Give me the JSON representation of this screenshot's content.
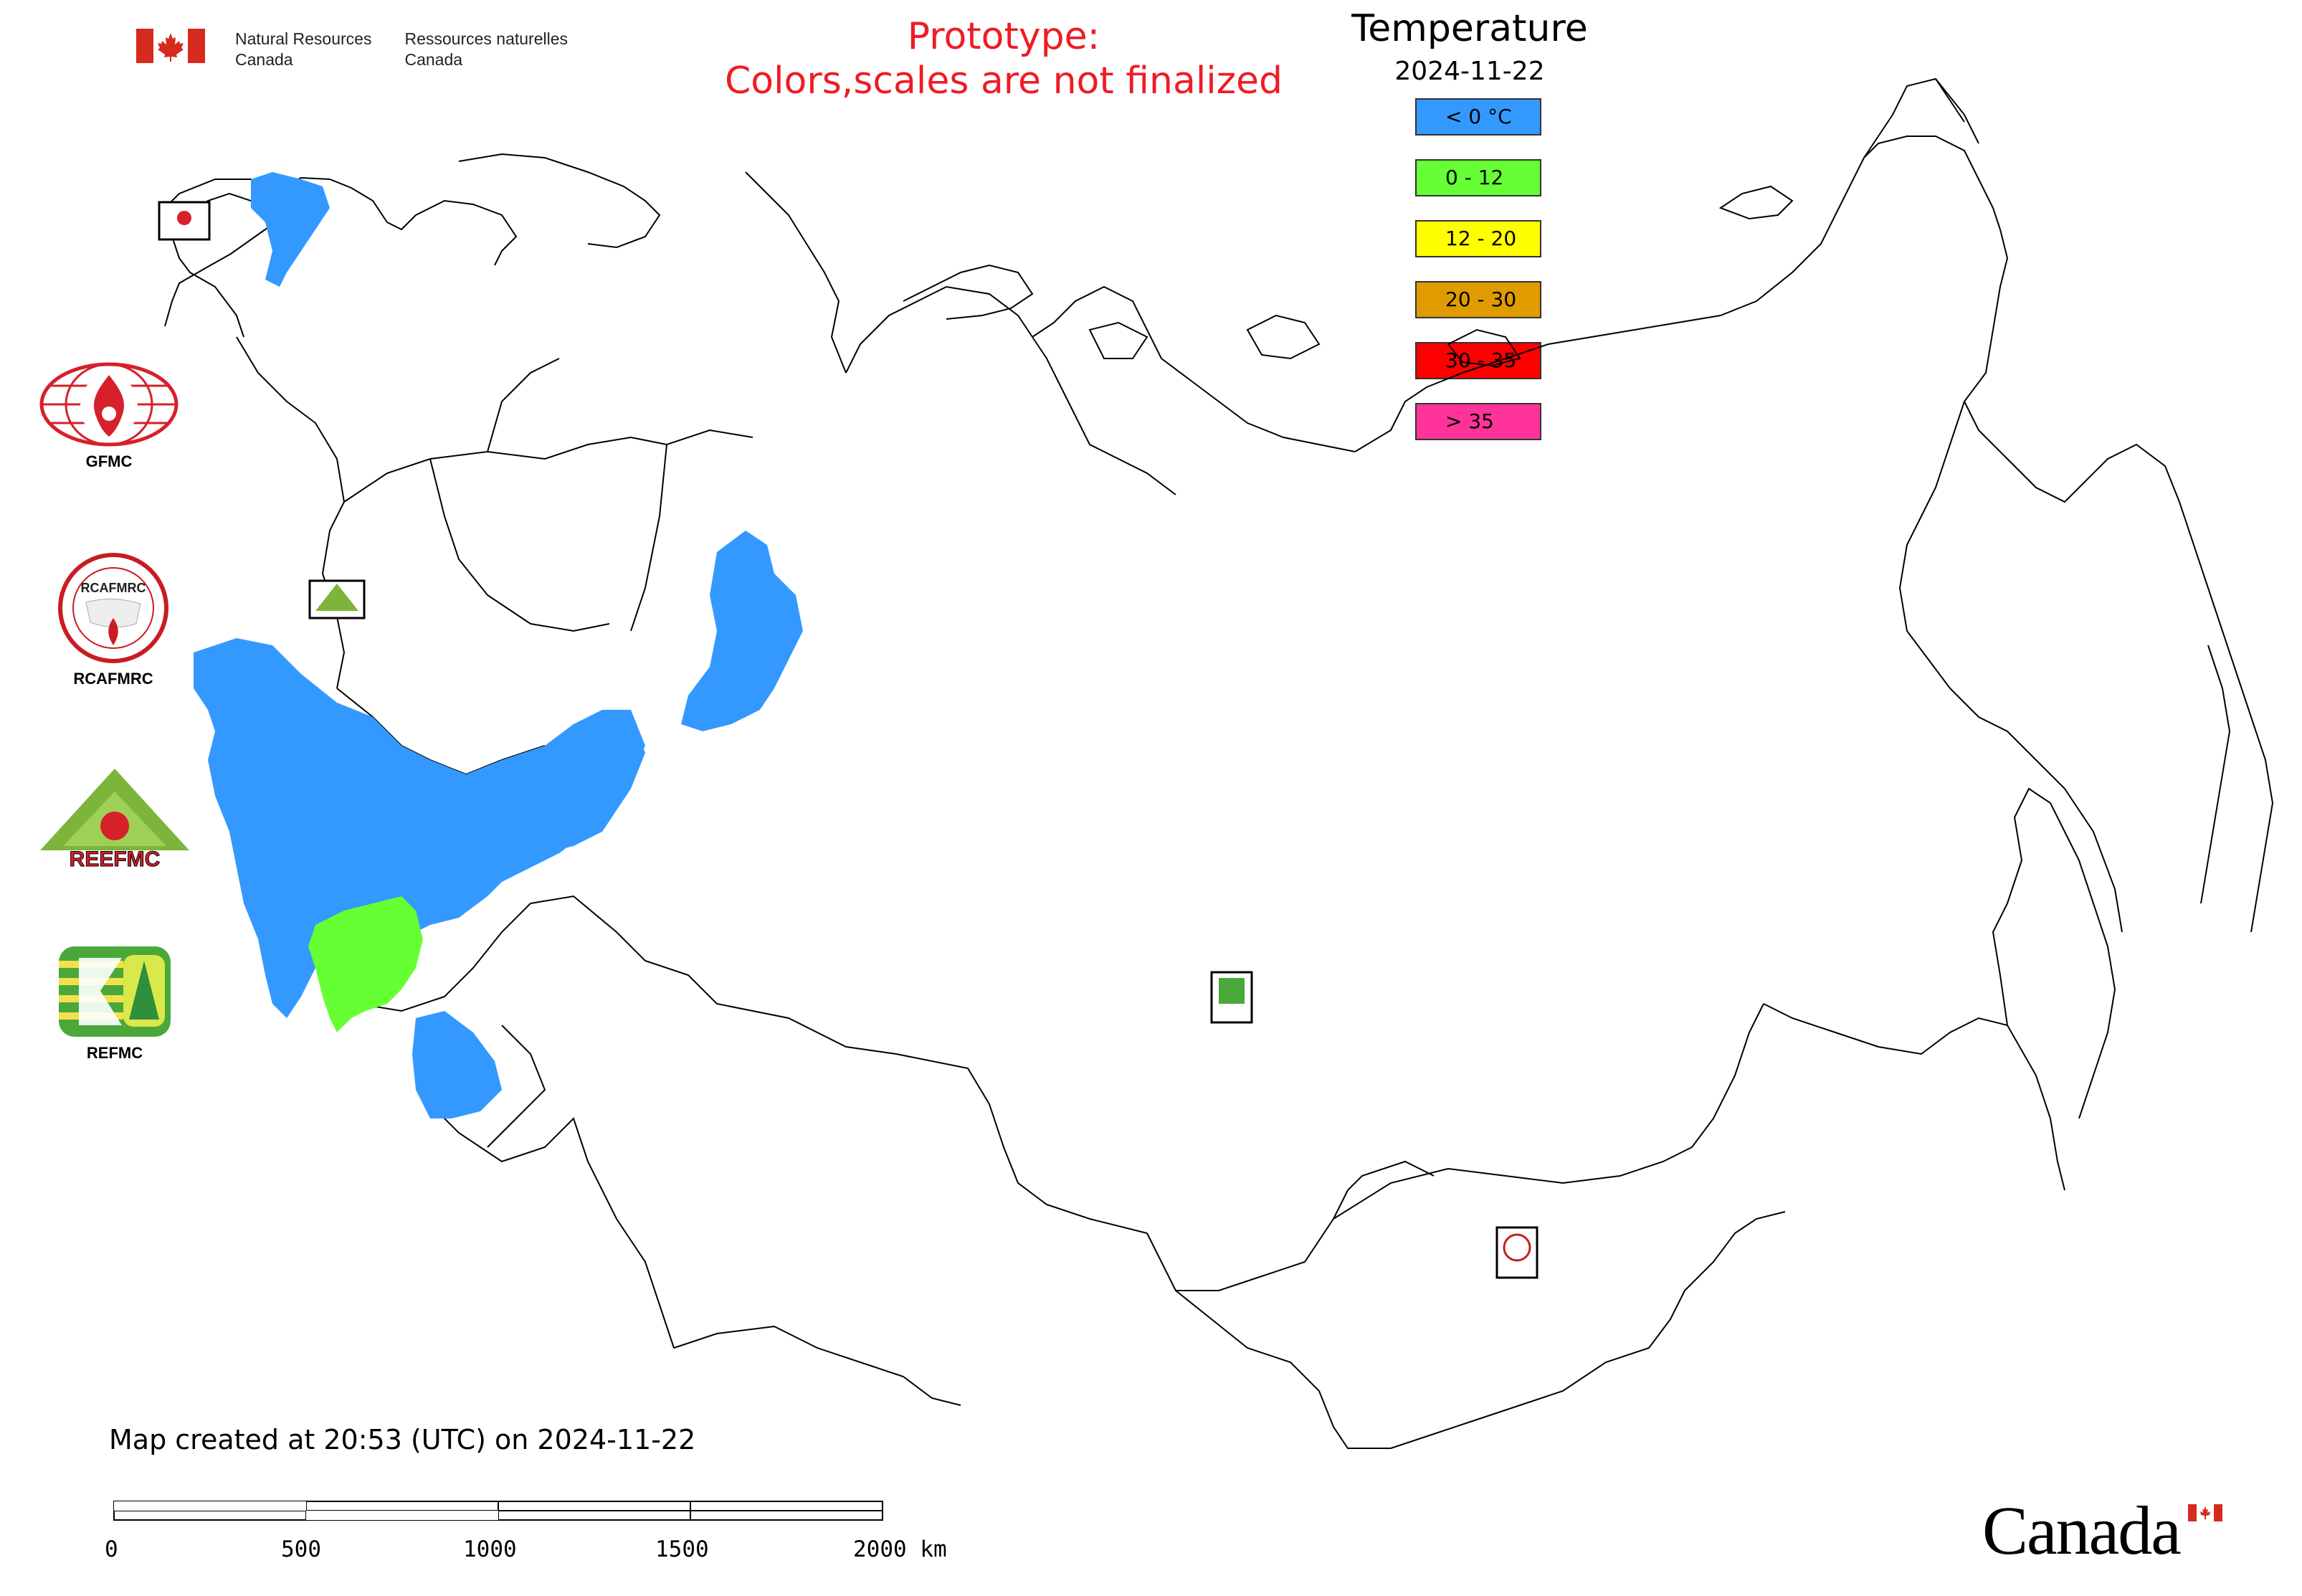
{
  "header": {
    "org_en_line1": "Natural Resources",
    "org_en_line2": "Canada",
    "org_fr_line1": "Ressources naturelles",
    "org_fr_line2": "Canada",
    "prototype_line1": "Prototype:",
    "prototype_line2": "Colors,scales are not finalized"
  },
  "legend": {
    "title": "Temperature",
    "date": "2024-11-22",
    "items": [
      {
        "label": "< 0 °C",
        "color": "#3399ff"
      },
      {
        "label": "0 - 12",
        "color": "#66ff33"
      },
      {
        "label": "12 - 20",
        "color": "#ffff00"
      },
      {
        "label": "20 - 30",
        "color": "#e09b00"
      },
      {
        "label": "30 - 35",
        "color": "#ff0000"
      },
      {
        "label": "> 35",
        "color": "#ff3399"
      }
    ]
  },
  "logos": [
    {
      "label": "GFMC",
      "icon": "gfmc-logo-icon"
    },
    {
      "label": "RCAFMRC",
      "icon": "rcafmrc-logo-icon"
    },
    {
      "label": "REEFMC",
      "icon": "reefmc-logo-icon"
    },
    {
      "label": "REFMC",
      "icon": "refmc-logo-icon"
    }
  ],
  "footer": {
    "created": "Map created at 20:53 (UTC) on 2024-11-22",
    "scale_labels": [
      "0",
      "500",
      "1000",
      "1500",
      "2000 km"
    ],
    "wordmark": "Canada"
  }
}
